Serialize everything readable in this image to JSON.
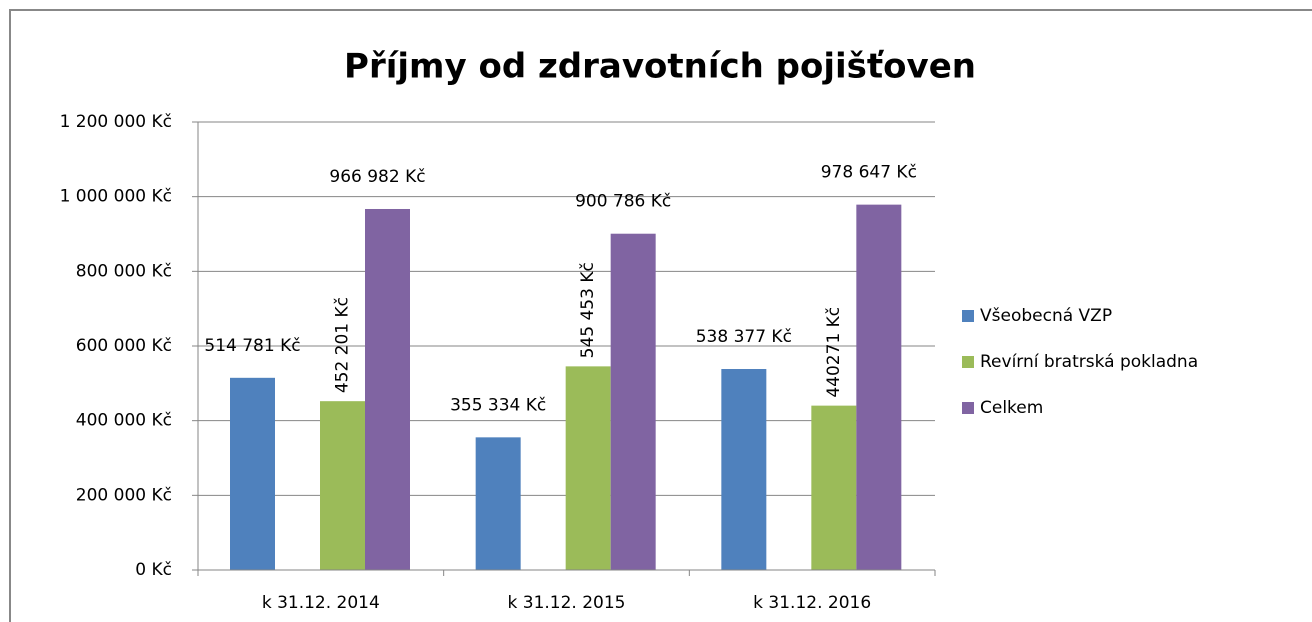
{
  "chart_data": {
    "type": "bar",
    "title": "Příjmy od zdravotních pojišťoven",
    "categories": [
      "k 31.12. 2014",
      "k 31.12. 2015",
      "k 31.12. 2016"
    ],
    "series": [
      {
        "name": "Všeobecná VZP",
        "color": "#4f81bd",
        "values": [
          514781,
          355334,
          538377
        ],
        "value_labels": [
          "514 781 Kč",
          "355 334 Kč",
          "538 377 Kč"
        ]
      },
      {
        "name": "Revírní bratrská pokladna",
        "color": "#9bbb59",
        "values": [
          452201,
          545453,
          440271
        ],
        "value_labels": [
          "452 201 Kč",
          "545 453 Kč",
          "440271 Kč"
        ]
      },
      {
        "name": "Celkem",
        "color": "#8064a2",
        "values": [
          966982,
          900786,
          978647
        ],
        "value_labels": [
          "966 982 Kč",
          "900 786 Kč",
          "978 647 Kč"
        ]
      }
    ],
    "ylim": [
      0,
      1200000
    ],
    "yticks": [
      {
        "value": 0,
        "label": "0 Kč"
      },
      {
        "value": 200000,
        "label": "200 000 Kč"
      },
      {
        "value": 400000,
        "label": "400 000 Kč"
      },
      {
        "value": 600000,
        "label": "600 000 Kč"
      },
      {
        "value": 800000,
        "label": "800 000 Kč"
      },
      {
        "value": 1000000,
        "label": "1 000 000 Kč"
      },
      {
        "value": 1200000,
        "label": "1 200 000 Kč"
      }
    ],
    "grid": true,
    "legend": "right"
  }
}
